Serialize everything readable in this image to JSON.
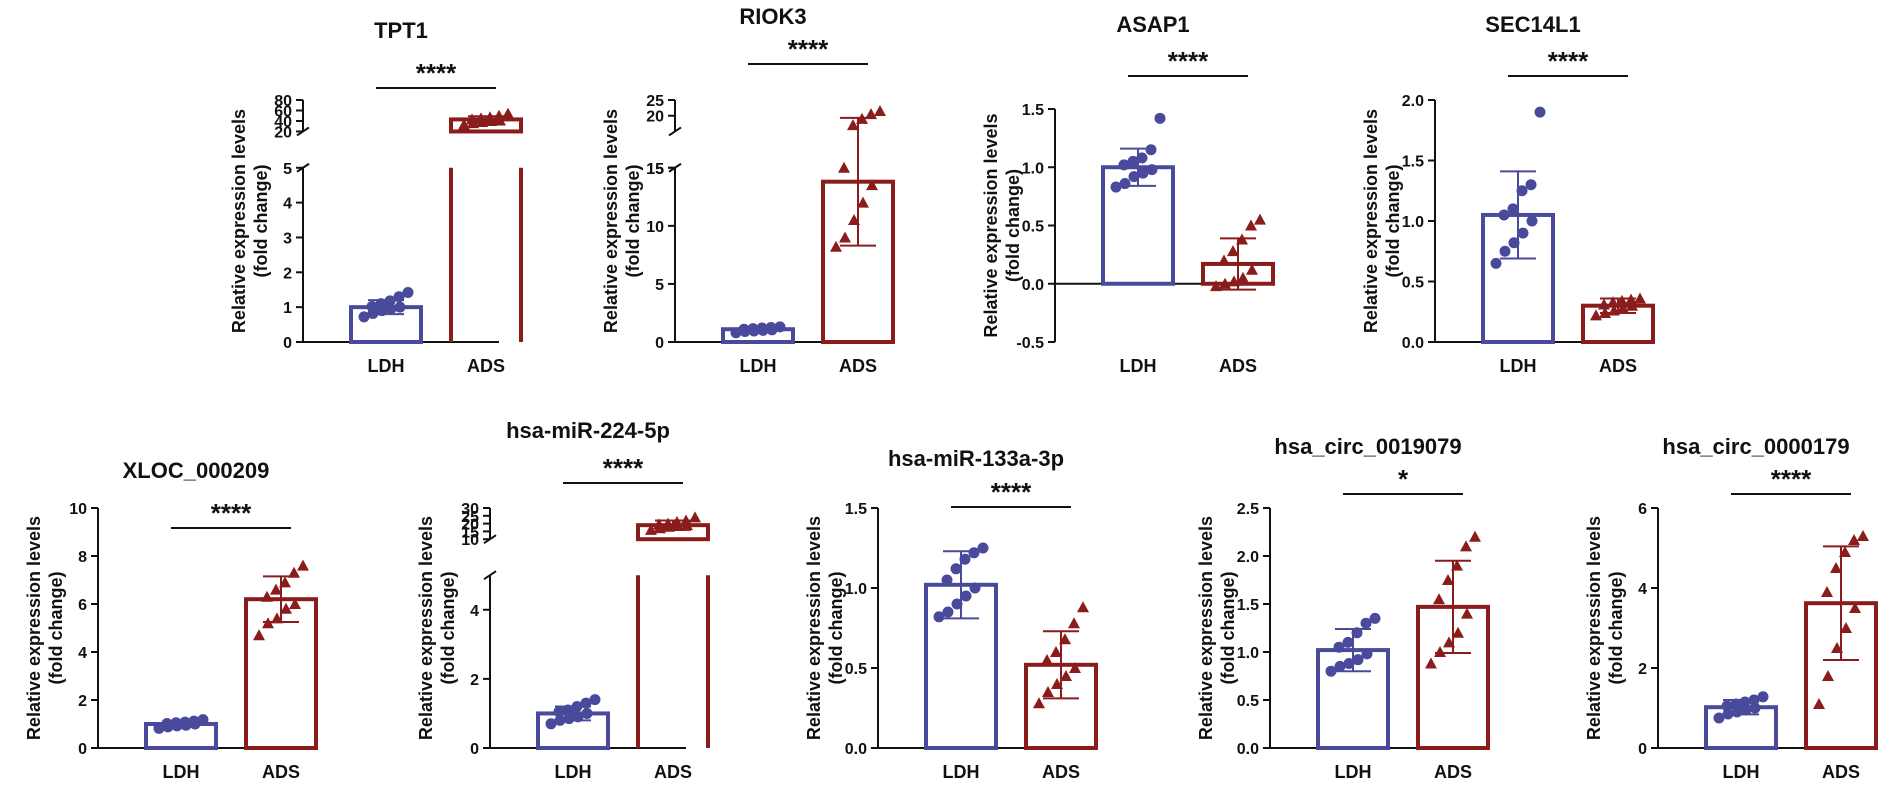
{
  "colors": {
    "LDH": "#4a4a9c",
    "ADS": "#8b1c1c",
    "axis": "#111111"
  },
  "chart_data": [
    {
      "type": "bar",
      "title": "TPT1",
      "ylabel": "Relative expression levels",
      "ylabel2": "(fold change)",
      "categories": [
        "LDH",
        "ADS"
      ],
      "values": [
        1.0,
        43
      ],
      "sd": [
        0.2,
        6
      ],
      "points": [
        [
          0.72,
          0.82,
          0.9,
          0.95,
          1.0,
          1.02,
          1.1,
          1.18,
          1.3,
          1.42
        ],
        [
          33,
          36,
          38,
          40,
          41,
          43,
          45,
          47,
          50,
          54
        ]
      ],
      "significance": "****",
      "ylim": [
        0,
        80
      ],
      "broken": {
        "lower": [
          0,
          5
        ],
        "upper": [
          20,
          80
        ],
        "lower_ticks": [
          0,
          1,
          2,
          3,
          4,
          5
        ],
        "upper_ticks": [
          20,
          40,
          60,
          80
        ]
      }
    },
    {
      "type": "bar",
      "title": "RIOK3",
      "ylabel": "Relative expression levels",
      "ylabel2": "(fold change)",
      "categories": [
        "LDH",
        "ADS"
      ],
      "values": [
        1.1,
        13.8
      ],
      "sd": [
        0.2,
        5.5
      ],
      "points": [
        [
          0.8,
          0.9,
          0.95,
          1.0,
          1.05,
          1.1,
          1.15,
          1.2,
          1.25,
          1.3
        ],
        [
          8.2,
          9.0,
          10.5,
          12.0,
          13.5,
          15.0,
          17.0,
          19.0,
          20.5,
          21.5
        ]
      ],
      "significance": "****",
      "ylim": [
        0,
        25
      ],
      "broken": {
        "lower": [
          0,
          15
        ],
        "upper": [
          15,
          25
        ],
        "lower_ticks": [
          0,
          5,
          10,
          15
        ],
        "upper_ticks": [
          15,
          20,
          25
        ]
      }
    },
    {
      "type": "bar",
      "title": "ASAP1",
      "ylabel": "Relative expression levels",
      "ylabel2": "(fold change)",
      "categories": [
        "LDH",
        "ADS"
      ],
      "values": [
        1.0,
        0.17
      ],
      "sd": [
        0.16,
        0.22
      ],
      "points": [
        [
          0.83,
          0.86,
          0.92,
          0.95,
          0.98,
          1.02,
          1.05,
          1.08,
          1.15,
          1.42
        ],
        [
          -0.02,
          0.0,
          0.02,
          0.05,
          0.12,
          0.2,
          0.28,
          0.38,
          0.5,
          0.55
        ]
      ],
      "significance": "****",
      "ylim": [
        -0.5,
        1.5
      ],
      "yticks": [
        -0.5,
        0.0,
        0.5,
        1.0,
        1.5
      ],
      "tick_decimals": 1
    },
    {
      "type": "bar",
      "title": "SEC14L1",
      "ylabel": "Relative expression levels",
      "ylabel2": "(fold change)",
      "categories": [
        "LDH",
        "ADS"
      ],
      "values": [
        1.05,
        0.3
      ],
      "sd": [
        0.36,
        0.06
      ],
      "points": [
        [
          0.65,
          0.75,
          0.82,
          0.9,
          1.0,
          1.05,
          1.1,
          1.25,
          1.3,
          1.9
        ],
        [
          0.22,
          0.24,
          0.26,
          0.28,
          0.3,
          0.31,
          0.33,
          0.34,
          0.35,
          0.36
        ]
      ],
      "significance": "****",
      "ylim": [
        0,
        2.0
      ],
      "yticks": [
        0,
        0.5,
        1.0,
        1.5,
        2.0
      ],
      "tick_decimals": 1
    },
    {
      "type": "bar",
      "title": "XLOC_000209",
      "ylabel": "Relative expression levels",
      "ylabel2": "(fold change)",
      "categories": [
        "LDH",
        "ADS"
      ],
      "values": [
        1.0,
        6.2
      ],
      "sd": [
        0.12,
        0.95
      ],
      "points": [
        [
          0.82,
          0.88,
          0.92,
          0.95,
          1.0,
          1.02,
          1.05,
          1.08,
          1.12,
          1.18
        ],
        [
          4.7,
          5.2,
          5.4,
          5.8,
          6.0,
          6.3,
          6.6,
          6.9,
          7.3,
          7.6
        ]
      ],
      "significance": "****",
      "ylim": [
        0,
        10
      ],
      "yticks": [
        0,
        2,
        4,
        6,
        8,
        10
      ]
    },
    {
      "type": "bar",
      "title": "hsa-miR-224-5p",
      "ylabel": "Relative expression levels",
      "ylabel2": "(fold change)",
      "categories": [
        "LDH",
        "ADS"
      ],
      "values": [
        1.0,
        19
      ],
      "sd": [
        0.2,
        3
      ],
      "points": [
        [
          0.7,
          0.8,
          0.85,
          0.9,
          1.0,
          1.05,
          1.1,
          1.2,
          1.3,
          1.4
        ],
        [
          16,
          17,
          18,
          18.5,
          19,
          19.5,
          20,
          21,
          22,
          24
        ]
      ],
      "significance": "****",
      "ylim": [
        0,
        30
      ],
      "broken": {
        "lower": [
          0,
          5
        ],
        "upper": [
          10,
          30
        ],
        "lower_ticks": [
          0,
          2,
          4
        ],
        "upper_ticks": [
          10,
          15,
          20,
          25,
          30
        ]
      }
    },
    {
      "type": "bar",
      "title": "hsa-miR-133a-3p",
      "ylabel": "Relative expression levels",
      "ylabel2": "(fold change)",
      "categories": [
        "LDH",
        "ADS"
      ],
      "values": [
        1.02,
        0.52
      ],
      "sd": [
        0.21,
        0.21
      ],
      "points": [
        [
          0.82,
          0.85,
          0.9,
          0.95,
          1.0,
          1.05,
          1.12,
          1.18,
          1.22,
          1.25
        ],
        [
          0.28,
          0.35,
          0.4,
          0.45,
          0.5,
          0.55,
          0.6,
          0.68,
          0.78,
          0.88
        ]
      ],
      "significance": "****",
      "ylim": [
        0,
        1.5
      ],
      "yticks": [
        0,
        0.5,
        1.0,
        1.5
      ],
      "tick_decimals": 1
    },
    {
      "type": "bar",
      "title": "hsa_circ_0019079",
      "ylabel": "Relative expression levels",
      "ylabel2": "(fold change)",
      "categories": [
        "LDH",
        "ADS"
      ],
      "values": [
        1.02,
        1.47
      ],
      "sd": [
        0.22,
        0.48
      ],
      "points": [
        [
          0.8,
          0.85,
          0.88,
          0.92,
          0.98,
          1.05,
          1.1,
          1.2,
          1.3,
          1.35
        ],
        [
          0.88,
          1.0,
          1.1,
          1.2,
          1.4,
          1.55,
          1.75,
          1.9,
          2.1,
          2.2
        ]
      ],
      "significance": "*",
      "ylim": [
        0,
        2.5
      ],
      "yticks": [
        0,
        0.5,
        1.0,
        1.5,
        2.0,
        2.5
      ],
      "tick_decimals": 1
    },
    {
      "type": "bar",
      "title": "hsa_circ_0000179",
      "ylabel": "Relative expression levels",
      "ylabel2": "(fold change)",
      "categories": [
        "LDH",
        "ADS"
      ],
      "values": [
        1.02,
        3.62
      ],
      "sd": [
        0.18,
        1.42
      ],
      "points": [
        [
          0.75,
          0.85,
          0.9,
          0.95,
          1.0,
          1.05,
          1.1,
          1.15,
          1.2,
          1.28
        ],
        [
          1.1,
          1.8,
          2.5,
          3.0,
          3.5,
          3.9,
          4.5,
          4.9,
          5.2,
          5.3
        ]
      ],
      "significance": "****",
      "ylim": [
        0,
        6
      ],
      "yticks": [
        0,
        2,
        4,
        6
      ]
    }
  ]
}
